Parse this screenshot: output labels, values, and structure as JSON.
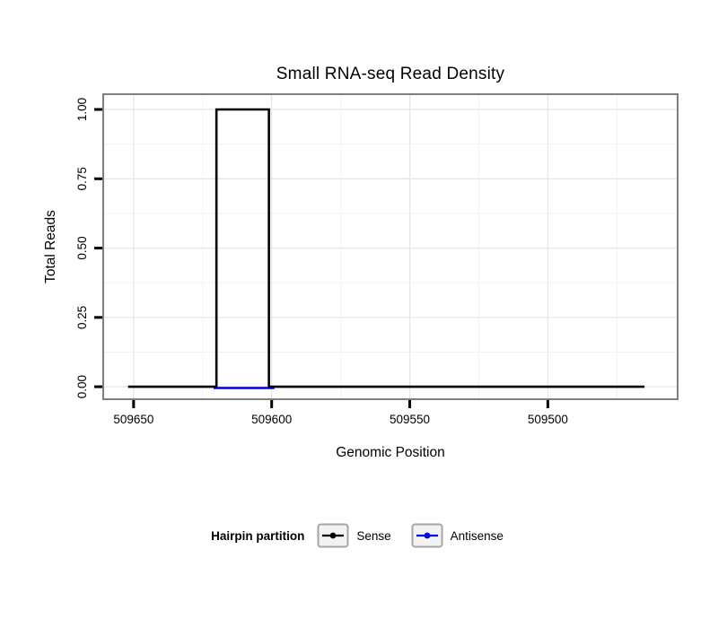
{
  "chart_data": {
    "type": "line",
    "title": "Small RNA-seq Read Density",
    "xlabel": "Genomic Position",
    "ylabel": "Total Reads",
    "x_ticks": [
      509650,
      509600,
      509550,
      509500
    ],
    "x_tick_labels": [
      "509650",
      "509600",
      "509550",
      "509500"
    ],
    "x_minor_ticks": [
      509625,
      509575,
      509525,
      509475
    ],
    "y_ticks": [
      0,
      0.25,
      0.5,
      0.75,
      1
    ],
    "y_tick_labels": [
      "0.00",
      "0.25",
      "0.50",
      "0.75",
      "1.00"
    ],
    "y_minor_ticks": [
      0.125,
      0.375,
      0.625,
      0.875
    ],
    "x_domain": [
      509661,
      509453
    ],
    "x_reversed": true,
    "y_domain": [
      -0.045,
      1.055
    ],
    "grid": true,
    "series": [
      {
        "name": "Sense",
        "color": "#000000",
        "points": [
          [
            509652,
            0
          ],
          [
            509620,
            0
          ],
          [
            509620,
            1
          ],
          [
            509601,
            1
          ],
          [
            509601,
            0
          ],
          [
            509465,
            0
          ]
        ]
      },
      {
        "name": "Antisense",
        "color": "#0000ee",
        "points": [
          [
            509621,
            0
          ],
          [
            509599,
            0
          ]
        ]
      }
    ],
    "legend": {
      "title": "Hairpin partition",
      "position": "bottom",
      "entries": [
        {
          "label": "Sense",
          "color": "#000000"
        },
        {
          "label": "Antisense",
          "color": "#0000ee"
        }
      ]
    }
  },
  "colors": {
    "panel_bg": "#ffffff",
    "panel_border": "#7f7f7f",
    "grid_major": "#e5e5e5",
    "grid_minor": "#f2f2f2",
    "tick": "#000000",
    "key_fill": "#f2f2f2",
    "key_border": "#a6a6a6"
  }
}
